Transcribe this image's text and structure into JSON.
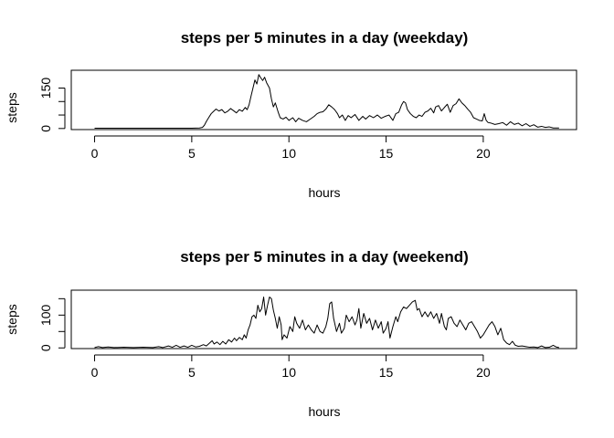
{
  "chart_data": [
    {
      "type": "line",
      "title": "steps per 5 minutes in a day (weekday)",
      "xlabel": "hours",
      "ylabel": "steps",
      "xlim": [
        -1.2,
        24.8
      ],
      "ylim": [
        -4,
        216
      ],
      "xticks": [
        0,
        5,
        10,
        15,
        20
      ],
      "yticks": [
        0,
        50,
        100,
        150
      ],
      "ytick_labels": [
        "0",
        "",
        "",
        "150"
      ],
      "grid": false,
      "series": [
        {
          "color": "#000000",
          "points": [
            [
              0,
              1
            ],
            [
              1,
              1
            ],
            [
              2,
              1
            ],
            [
              3,
              1
            ],
            [
              4,
              1
            ],
            [
              5,
              1
            ],
            [
              5.4,
              2
            ],
            [
              5.55,
              4
            ],
            [
              5.65,
              12
            ],
            [
              5.75,
              26
            ],
            [
              5.85,
              38
            ],
            [
              6.0,
              55
            ],
            [
              6.1,
              62
            ],
            [
              6.25,
              72
            ],
            [
              6.4,
              65
            ],
            [
              6.55,
              70
            ],
            [
              6.7,
              58
            ],
            [
              6.85,
              64
            ],
            [
              7.0,
              74
            ],
            [
              7.15,
              66
            ],
            [
              7.3,
              58
            ],
            [
              7.45,
              70
            ],
            [
              7.6,
              64
            ],
            [
              7.75,
              78
            ],
            [
              7.85,
              70
            ],
            [
              7.95,
              88
            ],
            [
              8.05,
              120
            ],
            [
              8.15,
              150
            ],
            [
              8.25,
              180
            ],
            [
              8.35,
              165
            ],
            [
              8.45,
              200
            ],
            [
              8.55,
              188
            ],
            [
              8.65,
              178
            ],
            [
              8.75,
              190
            ],
            [
              8.85,
              170
            ],
            [
              9.0,
              150
            ],
            [
              9.1,
              110
            ],
            [
              9.2,
              80
            ],
            [
              9.3,
              95
            ],
            [
              9.45,
              60
            ],
            [
              9.55,
              40
            ],
            [
              9.7,
              35
            ],
            [
              9.85,
              42
            ],
            [
              10.0,
              30
            ],
            [
              10.2,
              40
            ],
            [
              10.35,
              25
            ],
            [
              10.5,
              38
            ],
            [
              10.7,
              30
            ],
            [
              10.9,
              25
            ],
            [
              11.1,
              35
            ],
            [
              11.3,
              45
            ],
            [
              11.45,
              55
            ],
            [
              11.6,
              60
            ],
            [
              11.75,
              62
            ],
            [
              11.9,
              72
            ],
            [
              12.05,
              88
            ],
            [
              12.2,
              80
            ],
            [
              12.35,
              70
            ],
            [
              12.5,
              55
            ],
            [
              12.6,
              40
            ],
            [
              12.75,
              50
            ],
            [
              12.9,
              30
            ],
            [
              13.05,
              48
            ],
            [
              13.2,
              40
            ],
            [
              13.4,
              52
            ],
            [
              13.6,
              30
            ],
            [
              13.8,
              45
            ],
            [
              13.95,
              35
            ],
            [
              14.15,
              48
            ],
            [
              14.35,
              40
            ],
            [
              14.55,
              50
            ],
            [
              14.75,
              38
            ],
            [
              14.95,
              45
            ],
            [
              15.15,
              50
            ],
            [
              15.35,
              30
            ],
            [
              15.5,
              55
            ],
            [
              15.65,
              60
            ],
            [
              15.8,
              88
            ],
            [
              15.9,
              100
            ],
            [
              16.0,
              95
            ],
            [
              16.1,
              70
            ],
            [
              16.25,
              55
            ],
            [
              16.4,
              45
            ],
            [
              16.55,
              40
            ],
            [
              16.7,
              50
            ],
            [
              16.85,
              45
            ],
            [
              17.0,
              60
            ],
            [
              17.15,
              65
            ],
            [
              17.3,
              75
            ],
            [
              17.45,
              58
            ],
            [
              17.55,
              80
            ],
            [
              17.7,
              85
            ],
            [
              17.85,
              65
            ],
            [
              18.0,
              78
            ],
            [
              18.15,
              90
            ],
            [
              18.3,
              60
            ],
            [
              18.45,
              85
            ],
            [
              18.6,
              92
            ],
            [
              18.75,
              110
            ],
            [
              18.9,
              95
            ],
            [
              19.05,
              85
            ],
            [
              19.2,
              72
            ],
            [
              19.35,
              60
            ],
            [
              19.5,
              40
            ],
            [
              19.65,
              35
            ],
            [
              19.8,
              30
            ],
            [
              19.95,
              28
            ],
            [
              20.05,
              55
            ],
            [
              20.15,
              30
            ],
            [
              20.25,
              22
            ],
            [
              20.4,
              20
            ],
            [
              20.6,
              15
            ],
            [
              20.8,
              18
            ],
            [
              21.0,
              22
            ],
            [
              21.2,
              12
            ],
            [
              21.4,
              25
            ],
            [
              21.6,
              15
            ],
            [
              21.8,
              20
            ],
            [
              22.0,
              10
            ],
            [
              22.2,
              18
            ],
            [
              22.4,
              8
            ],
            [
              22.6,
              14
            ],
            [
              22.8,
              5
            ],
            [
              23.0,
              8
            ],
            [
              23.2,
              4
            ],
            [
              23.4,
              6
            ],
            [
              23.6,
              2
            ],
            [
              23.9,
              2
            ]
          ]
        }
      ]
    },
    {
      "type": "line",
      "title": "steps per 5 minutes in a day (weekend)",
      "xlabel": "hours",
      "ylabel": "steps",
      "xlim": [
        -1.2,
        24.8
      ],
      "ylim": [
        -2,
        176
      ],
      "xticks": [
        0,
        5,
        10,
        15,
        20
      ],
      "yticks": [
        0,
        50,
        100,
        150
      ],
      "ytick_labels": [
        "0",
        "",
        "100",
        ""
      ],
      "grid": false,
      "series": [
        {
          "color": "#000000",
          "points": [
            [
              0,
              1
            ],
            [
              0.2,
              4
            ],
            [
              0.4,
              1
            ],
            [
              0.7,
              3
            ],
            [
              1,
              1
            ],
            [
              1.5,
              2
            ],
            [
              2,
              1
            ],
            [
              2.5,
              2
            ],
            [
              3,
              1
            ],
            [
              3.3,
              4
            ],
            [
              3.5,
              1
            ],
            [
              3.8,
              6
            ],
            [
              4,
              2
            ],
            [
              4.2,
              8
            ],
            [
              4.4,
              2
            ],
            [
              4.6,
              6
            ],
            [
              4.8,
              2
            ],
            [
              5.0,
              8
            ],
            [
              5.2,
              3
            ],
            [
              5.4,
              5
            ],
            [
              5.6,
              10
            ],
            [
              5.75,
              6
            ],
            [
              5.9,
              14
            ],
            [
              6.05,
              22
            ],
            [
              6.15,
              12
            ],
            [
              6.3,
              18
            ],
            [
              6.45,
              10
            ],
            [
              6.6,
              20
            ],
            [
              6.75,
              12
            ],
            [
              6.9,
              25
            ],
            [
              7.05,
              18
            ],
            [
              7.2,
              30
            ],
            [
              7.3,
              22
            ],
            [
              7.45,
              32
            ],
            [
              7.6,
              25
            ],
            [
              7.7,
              40
            ],
            [
              7.8,
              30
            ],
            [
              7.9,
              55
            ],
            [
              8.0,
              70
            ],
            [
              8.1,
              95
            ],
            [
              8.2,
              100
            ],
            [
              8.3,
              90
            ],
            [
              8.4,
              130
            ],
            [
              8.5,
              110
            ],
            [
              8.6,
              120
            ],
            [
              8.7,
              155
            ],
            [
              8.8,
              100
            ],
            [
              8.9,
              130
            ],
            [
              9.0,
              155
            ],
            [
              9.1,
              150
            ],
            [
              9.2,
              115
            ],
            [
              9.3,
              90
            ],
            [
              9.4,
              60
            ],
            [
              9.5,
              95
            ],
            [
              9.6,
              70
            ],
            [
              9.65,
              25
            ],
            [
              9.75,
              40
            ],
            [
              9.9,
              30
            ],
            [
              10.05,
              65
            ],
            [
              10.2,
              50
            ],
            [
              10.3,
              95
            ],
            [
              10.4,
              75
            ],
            [
              10.55,
              60
            ],
            [
              10.7,
              85
            ],
            [
              10.85,
              55
            ],
            [
              11.0,
              70
            ],
            [
              11.15,
              55
            ],
            [
              11.3,
              45
            ],
            [
              11.45,
              70
            ],
            [
              11.6,
              50
            ],
            [
              11.75,
              45
            ],
            [
              11.9,
              65
            ],
            [
              12.0,
              90
            ],
            [
              12.1,
              135
            ],
            [
              12.2,
              140
            ],
            [
              12.3,
              90
            ],
            [
              12.45,
              50
            ],
            [
              12.6,
              75
            ],
            [
              12.7,
              45
            ],
            [
              12.85,
              60
            ],
            [
              12.95,
              100
            ],
            [
              13.1,
              80
            ],
            [
              13.25,
              95
            ],
            [
              13.4,
              70
            ],
            [
              13.5,
              85
            ],
            [
              13.6,
              120
            ],
            [
              13.7,
              60
            ],
            [
              13.85,
              105
            ],
            [
              14.0,
              75
            ],
            [
              14.15,
              90
            ],
            [
              14.3,
              55
            ],
            [
              14.45,
              85
            ],
            [
              14.6,
              60
            ],
            [
              14.75,
              80
            ],
            [
              14.85,
              45
            ],
            [
              15.0,
              60
            ],
            [
              15.1,
              80
            ],
            [
              15.2,
              30
            ],
            [
              15.35,
              65
            ],
            [
              15.5,
              95
            ],
            [
              15.6,
              80
            ],
            [
              15.75,
              110
            ],
            [
              15.9,
              125
            ],
            [
              16.05,
              120
            ],
            [
              16.2,
              130
            ],
            [
              16.35,
              140
            ],
            [
              16.5,
              145
            ],
            [
              16.6,
              115
            ],
            [
              16.7,
              120
            ],
            [
              16.85,
              95
            ],
            [
              17.0,
              110
            ],
            [
              17.15,
              95
            ],
            [
              17.3,
              110
            ],
            [
              17.45,
              90
            ],
            [
              17.6,
              105
            ],
            [
              17.75,
              75
            ],
            [
              17.85,
              105
            ],
            [
              18.0,
              65
            ],
            [
              18.1,
              55
            ],
            [
              18.2,
              90
            ],
            [
              18.35,
              95
            ],
            [
              18.5,
              75
            ],
            [
              18.65,
              65
            ],
            [
              18.8,
              85
            ],
            [
              18.95,
              70
            ],
            [
              19.1,
              55
            ],
            [
              19.25,
              75
            ],
            [
              19.4,
              80
            ],
            [
              19.55,
              65
            ],
            [
              19.7,
              50
            ],
            [
              19.85,
              30
            ],
            [
              20.0,
              40
            ],
            [
              20.15,
              55
            ],
            [
              20.3,
              70
            ],
            [
              20.45,
              80
            ],
            [
              20.6,
              65
            ],
            [
              20.75,
              40
            ],
            [
              20.9,
              60
            ],
            [
              21.05,
              25
            ],
            [
              21.2,
              15
            ],
            [
              21.35,
              10
            ],
            [
              21.5,
              20
            ],
            [
              21.65,
              8
            ],
            [
              21.8,
              5
            ],
            [
              22.0,
              6
            ],
            [
              22.2,
              4
            ],
            [
              22.4,
              2
            ],
            [
              22.6,
              3
            ],
            [
              22.8,
              1
            ],
            [
              23.0,
              6
            ],
            [
              23.2,
              1
            ],
            [
              23.4,
              2
            ],
            [
              23.6,
              8
            ],
            [
              23.75,
              3
            ],
            [
              23.9,
              1
            ]
          ]
        }
      ]
    }
  ]
}
